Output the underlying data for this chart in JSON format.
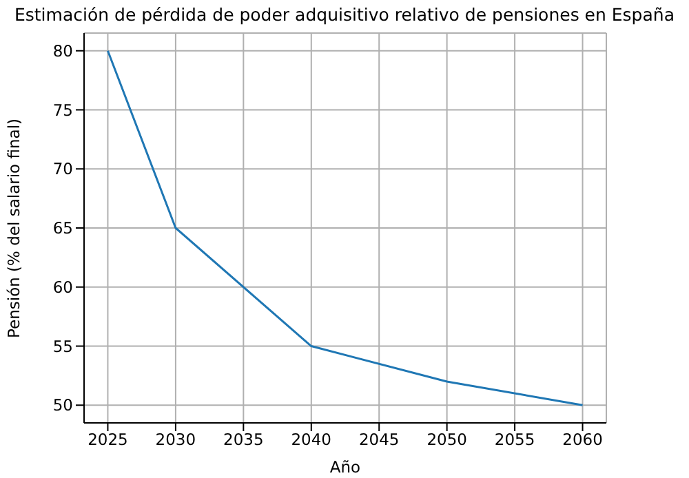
{
  "chart_data": {
    "type": "line",
    "title": "Estimación de pérdida de poder adquisitivo relativo de pensiones en España",
    "xlabel": "Año",
    "ylabel": "Pensión (% del salario final)",
    "x": [
      2025,
      2030,
      2040,
      2050,
      2060
    ],
    "series": [
      {
        "color": "#1f77b4",
        "values": [
          80,
          65,
          55,
          52,
          50
        ]
      }
    ],
    "xlim": [
      2023.25,
      2061.75
    ],
    "xticks": [
      2025,
      2030,
      2035,
      2040,
      2045,
      2050,
      2055,
      2060
    ],
    "ylim": [
      48.5,
      81.5
    ],
    "yticks": [
      50,
      55,
      60,
      65,
      70,
      75,
      80
    ],
    "grid": true,
    "marker": "none",
    "line_style": "solid",
    "legend": false
  }
}
